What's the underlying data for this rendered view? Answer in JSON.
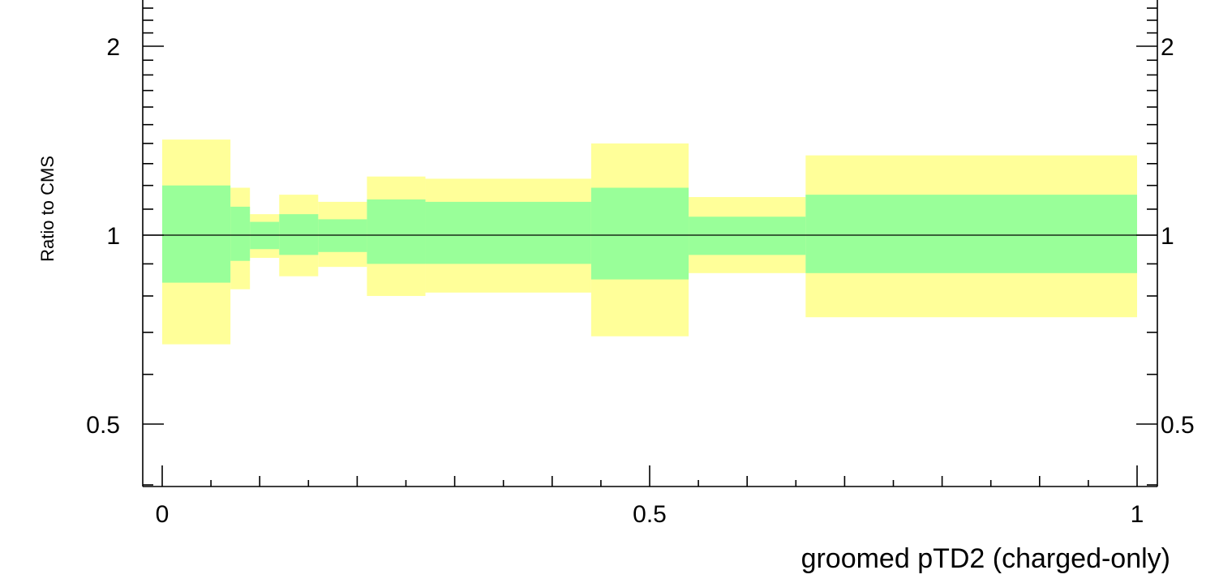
{
  "chart_data": {
    "type": "area",
    "title": "",
    "xlabel": "groomed pTD2 (charged-only)",
    "ylabel": "Ratio to CMS",
    "xlim": [
      -0.02,
      1.02
    ],
    "ylim": [
      0.35,
      2.55
    ],
    "y_scale": "log",
    "grid": false,
    "x_major_ticks": [
      0,
      0.5,
      1
    ],
    "x_tick_labels": [
      "0",
      "0.5",
      "1"
    ],
    "y_major_ticks": [
      0.5,
      1,
      2
    ],
    "y_tick_labels": [
      "0.5",
      "1",
      "2"
    ],
    "reference_line": 1,
    "bins": [
      {
        "xlo": 0.0,
        "xhi": 0.07,
        "outer": [
          0.67,
          1.42
        ],
        "inner": [
          0.84,
          1.2
        ]
      },
      {
        "xlo": 0.07,
        "xhi": 0.09,
        "outer": [
          0.82,
          1.19
        ],
        "inner": [
          0.91,
          1.11
        ]
      },
      {
        "xlo": 0.09,
        "xhi": 0.12,
        "outer": [
          0.92,
          1.08
        ],
        "inner": [
          0.95,
          1.05
        ]
      },
      {
        "xlo": 0.12,
        "xhi": 0.16,
        "outer": [
          0.86,
          1.16
        ],
        "inner": [
          0.93,
          1.08
        ]
      },
      {
        "xlo": 0.16,
        "xhi": 0.21,
        "outer": [
          0.89,
          1.13
        ],
        "inner": [
          0.94,
          1.06
        ]
      },
      {
        "xlo": 0.21,
        "xhi": 0.27,
        "outer": [
          0.8,
          1.24
        ],
        "inner": [
          0.9,
          1.14
        ]
      },
      {
        "xlo": 0.27,
        "xhi": 0.44,
        "outer": [
          0.81,
          1.23
        ],
        "inner": [
          0.9,
          1.13
        ]
      },
      {
        "xlo": 0.44,
        "xhi": 0.54,
        "outer": [
          0.69,
          1.4
        ],
        "inner": [
          0.85,
          1.19
        ]
      },
      {
        "xlo": 0.54,
        "xhi": 0.66,
        "outer": [
          0.87,
          1.15
        ],
        "inner": [
          0.93,
          1.07
        ]
      },
      {
        "xlo": 0.66,
        "xhi": 1.0,
        "outer": [
          0.74,
          1.34
        ],
        "inner": [
          0.87,
          1.16
        ]
      }
    ],
    "colors": {
      "outer": "#ffff99",
      "inner": "#99ff99",
      "line": "#000000"
    }
  }
}
